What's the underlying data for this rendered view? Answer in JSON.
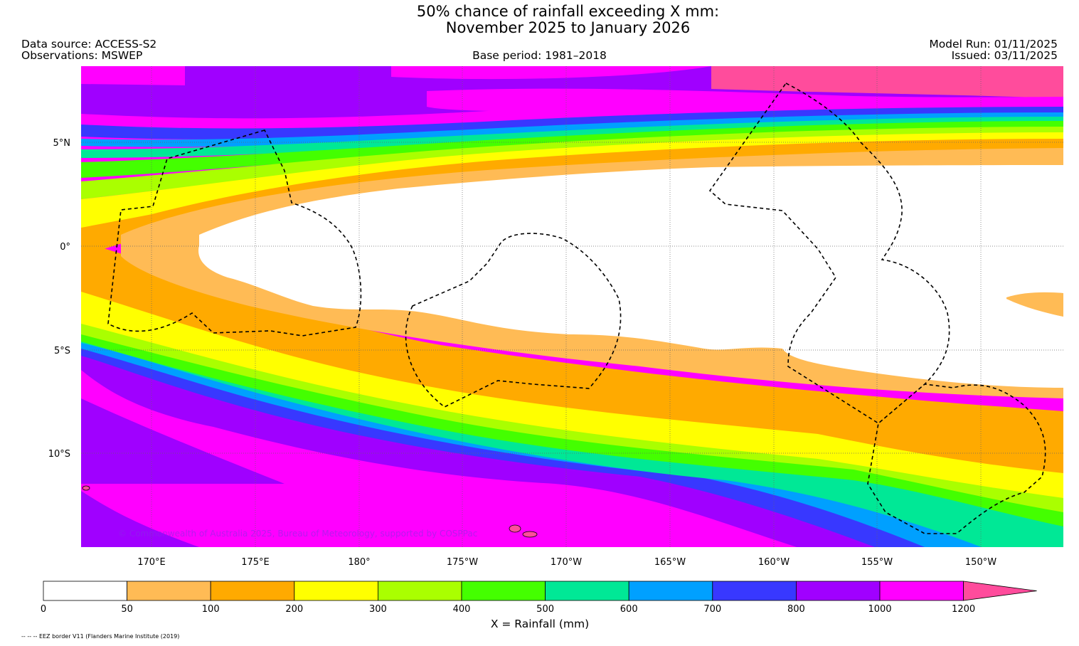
{
  "header": {
    "title_line1": "50% chance of rainfall exceeding X mm:",
    "title_line2": "November 2025 to January 2026",
    "data_source": "Data source: ACCESS-S2",
    "observations": "Observations: MSWEP",
    "base_period": "Base period: 1981–2018",
    "model_run": "Model Run: 01/11/2025",
    "issued": "Issued: 03/11/2025"
  },
  "map": {
    "lat_labels": [
      "5°N",
      "0°",
      "5°S",
      "10°S"
    ],
    "lon_labels": [
      "170°E",
      "175°E",
      "180°",
      "175°W",
      "170°W",
      "165°W",
      "160°W",
      "155°W",
      "150°W"
    ],
    "copyright": "© Commonwealth of Australia 2025, Bureau of Meteorology, supported by COSPPac"
  },
  "colorbar": {
    "ticks": [
      "0",
      "50",
      "100",
      "200",
      "300",
      "400",
      "500",
      "600",
      "700",
      "800",
      "1000",
      "1200"
    ],
    "colors": [
      "#ffffff",
      "#ffbb55",
      "#ffaa00",
      "#ffff00",
      "#aaff00",
      "#44ff00",
      "#00e896",
      "#00a0ff",
      "#3838ff",
      "#a000ff",
      "#ff00ff",
      "#ff4c9c"
    ],
    "label": "X = Rainfall (mm)"
  },
  "footer": {
    "note": "-- -- -- EEZ border V11 (Flanders Marine Institute (2019)"
  }
}
